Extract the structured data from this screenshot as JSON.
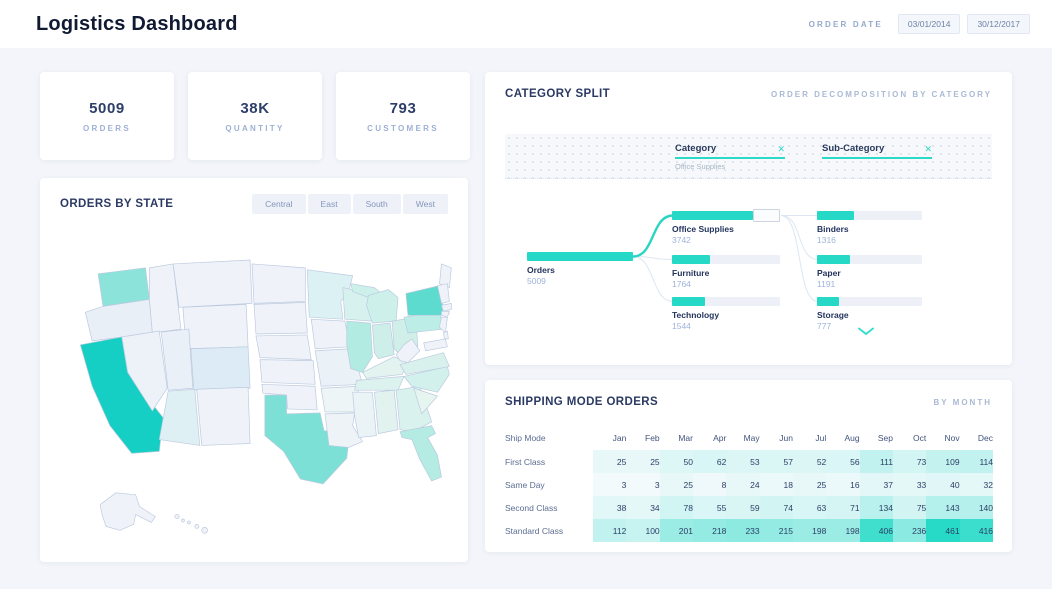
{
  "header": {
    "title": "Logistics Dashboard",
    "order_date_label": "ORDER DATE",
    "date_from": "03/01/2014",
    "date_to": "30/12/2017"
  },
  "kpis": [
    {
      "value": "5009",
      "label": "ORDERS"
    },
    {
      "value": "38K",
      "label": "QUANTITY"
    },
    {
      "value": "793",
      "label": "CUSTOMERS"
    }
  ],
  "orders_by_state": {
    "title": "ORDERS BY STATE",
    "regions": [
      "Central",
      "East",
      "South",
      "West"
    ],
    "map": {
      "palette": {
        "high": "#16cfc4",
        "medium": "#6fdfd3",
        "low": "#c9efe9",
        "base": "#eff3f9"
      },
      "fills": {
        "CA": "#16cfc4",
        "NY": "#5cdbce",
        "TX": "#7de0d6",
        "WA": "#8ce3d9",
        "PA": "#bceee7",
        "IL": "#b2ebe2",
        "FL": "#b4ebe3",
        "MI": "#cdf0ea",
        "OH": "#d0efe9",
        "IN": "#cdeee9",
        "WI": "#d7f2ee",
        "MN": "#dbf1f4",
        "VA": "#d8f1ed",
        "NC": "#d3f1ec",
        "GA": "#daf2ee",
        "TN": "#dcf2ee",
        "KY": "#e2f3f0",
        "SC": "#e7f5f1",
        "AL": "#e1f2ef",
        "CO": "#dcebf6",
        "AZ": "#dff0f5",
        "MO": "#eaf2f7",
        "MS": "#eaf4f6",
        "AR": "#edf5f7",
        "LA": "#eef3f8",
        "OR": "#e9eff7",
        "NV": "#edf1f8",
        "UT": "#eaf0f7"
      }
    }
  },
  "category_split": {
    "title": "CATEGORY SPLIT",
    "subtitle": "ORDER DECOMPOSITION BY CATEGORY",
    "filters": [
      {
        "label": "Category",
        "value": "Office Supplies"
      },
      {
        "label": "Sub-Category",
        "value": ""
      }
    ],
    "chart_data": {
      "type": "sankey",
      "root": {
        "label": "Orders",
        "value": 5009
      },
      "level1": [
        {
          "label": "Office Supplies",
          "value": 3742,
          "selected": true
        },
        {
          "label": "Furniture",
          "value": 1764
        },
        {
          "label": "Technology",
          "value": 1544
        }
      ],
      "level2_parent": "Office Supplies",
      "level2": [
        {
          "label": "Binders",
          "value": 1316
        },
        {
          "label": "Paper",
          "value": 1191
        },
        {
          "label": "Storage",
          "value": 777
        }
      ]
    }
  },
  "shipping": {
    "title": "SHIPPING MODE ORDERS",
    "subtitle": "BY MONTH",
    "chart_data": {
      "type": "heatmap",
      "row_header": "Ship Mode",
      "months": [
        "Jan",
        "Feb",
        "Mar",
        "Apr",
        "May",
        "Jun",
        "Jul",
        "Aug",
        "Sep",
        "Oct",
        "Nov",
        "Dec"
      ],
      "rows": [
        {
          "label": "First Class",
          "values": [
            25,
            25,
            50,
            62,
            53,
            57,
            52,
            56,
            111,
            73,
            109,
            114
          ]
        },
        {
          "label": "Same Day",
          "values": [
            3,
            3,
            25,
            8,
            24,
            18,
            25,
            16,
            37,
            33,
            40,
            32
          ]
        },
        {
          "label": "Second Class",
          "values": [
            38,
            34,
            78,
            55,
            59,
            74,
            63,
            71,
            134,
            75,
            143,
            140
          ]
        },
        {
          "label": "Standard Class",
          "values": [
            112,
            100,
            201,
            218,
            233,
            215,
            198,
            198,
            406,
            236,
            461,
            416
          ]
        }
      ],
      "max": 461,
      "heat_low": "#f3fafc",
      "heat_high": "#27dac7"
    }
  },
  "icons": {
    "clear": "✕"
  }
}
